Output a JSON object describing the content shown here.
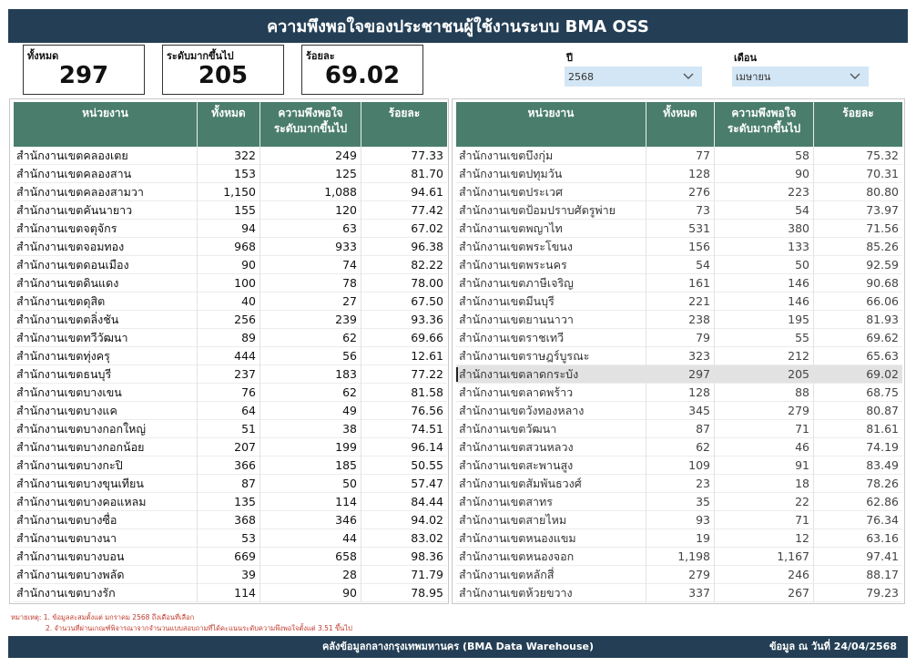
{
  "header": {
    "title": "ความพึงพอใจของประชาชนผู้ใช้งานระบบ BMA OSS"
  },
  "kpis": [
    {
      "label": "ทั้งหมด",
      "value": "297"
    },
    {
      "label": "ระดับมากขึ้นไป",
      "value": "205"
    },
    {
      "label": "ร้อยละ",
      "value": "69.02"
    }
  ],
  "filters": {
    "year": {
      "label": "ปี",
      "value": "2568"
    },
    "month": {
      "label": "เดือน",
      "value": "เมษายน"
    }
  },
  "icons": {
    "dropdown": "chevron-down-icon"
  },
  "colors": {
    "header": "#243f55",
    "table_header": "#4a7d6c",
    "filter_bg": "#d3e6f5",
    "note": "#c0392b"
  },
  "table": {
    "columns": [
      "หน่วยงาน",
      "ทั้งหมด",
      "ความพึงพอใจ ระดับมากขึ้นไป",
      "ร้อยละ"
    ],
    "col3_line1": "ความพึงพอใจ",
    "col3_line2": "ระดับมากขึ้นไป",
    "left_rows": [
      [
        "สำนักงานเขตคลองเตย",
        "322",
        "249",
        "77.33"
      ],
      [
        "สำนักงานเขตคลองสาน",
        "153",
        "125",
        "81.70"
      ],
      [
        "สำนักงานเขตคลองสามวา",
        "1,150",
        "1,088",
        "94.61"
      ],
      [
        "สำนักงานเขตคันนายาว",
        "155",
        "120",
        "77.42"
      ],
      [
        "สำนักงานเขตจตุจักร",
        "94",
        "63",
        "67.02"
      ],
      [
        "สำนักงานเขตจอมทอง",
        "968",
        "933",
        "96.38"
      ],
      [
        "สำนักงานเขตดอนเมือง",
        "90",
        "74",
        "82.22"
      ],
      [
        "สำนักงานเขตดินแดง",
        "100",
        "78",
        "78.00"
      ],
      [
        "สำนักงานเขตดุสิต",
        "40",
        "27",
        "67.50"
      ],
      [
        "สำนักงานเขตตลิ่งชัน",
        "256",
        "239",
        "93.36"
      ],
      [
        "สำนักงานเขตทวีวัฒนา",
        "89",
        "62",
        "69.66"
      ],
      [
        "สำนักงานเขตทุ่งครุ",
        "444",
        "56",
        "12.61"
      ],
      [
        "สำนักงานเขตธนบุรี",
        "237",
        "183",
        "77.22"
      ],
      [
        "สำนักงานเขตบางเขน",
        "76",
        "62",
        "81.58"
      ],
      [
        "สำนักงานเขตบางแค",
        "64",
        "49",
        "76.56"
      ],
      [
        "สำนักงานเขตบางกอกใหญ่",
        "51",
        "38",
        "74.51"
      ],
      [
        "สำนักงานเขตบางกอกน้อย",
        "207",
        "199",
        "96.14"
      ],
      [
        "สำนักงานเขตบางกะปิ",
        "366",
        "185",
        "50.55"
      ],
      [
        "สำนักงานเขตบางขุนเทียน",
        "87",
        "50",
        "57.47"
      ],
      [
        "สำนักงานเขตบางคอแหลม",
        "135",
        "114",
        "84.44"
      ],
      [
        "สำนักงานเขตบางซื่อ",
        "368",
        "346",
        "94.02"
      ],
      [
        "สำนักงานเขตบางนา",
        "53",
        "44",
        "83.02"
      ],
      [
        "สำนักงานเขตบางบอน",
        "669",
        "658",
        "98.36"
      ],
      [
        "สำนักงานเขตบางพลัด",
        "39",
        "28",
        "71.79"
      ],
      [
        "สำนักงานเขตบางรัก",
        "114",
        "90",
        "78.95"
      ]
    ],
    "right_rows": [
      [
        "สำนักงานเขตบึงกุ่ม",
        "77",
        "58",
        "75.32"
      ],
      [
        "สำนักงานเขตปทุมวัน",
        "128",
        "90",
        "70.31"
      ],
      [
        "สำนักงานเขตประเวศ",
        "276",
        "223",
        "80.80"
      ],
      [
        "สำนักงานเขตป้อมปราบศัตรูพ่าย",
        "73",
        "54",
        "73.97"
      ],
      [
        "สำนักงานเขตพญาไท",
        "531",
        "380",
        "71.56"
      ],
      [
        "สำนักงานเขตพระโขนง",
        "156",
        "133",
        "85.26"
      ],
      [
        "สำนักงานเขตพระนคร",
        "54",
        "50",
        "92.59"
      ],
      [
        "สำนักงานเขตภาษีเจริญ",
        "161",
        "146",
        "90.68"
      ],
      [
        "สำนักงานเขตมีนบุรี",
        "221",
        "146",
        "66.06"
      ],
      [
        "สำนักงานเขตยานนาวา",
        "238",
        "195",
        "81.93"
      ],
      [
        "สำนักงานเขตราชเทวี",
        "79",
        "55",
        "69.62"
      ],
      [
        "สำนักงานเขตราษฎร์บูรณะ",
        "323",
        "212",
        "65.63"
      ],
      [
        "สำนักงานเขตลาดกระบัง",
        "297",
        "205",
        "69.02"
      ],
      [
        "สำนักงานเขตลาดพร้าว",
        "128",
        "88",
        "68.75"
      ],
      [
        "สำนักงานเขตวังทองหลาง",
        "345",
        "279",
        "80.87"
      ],
      [
        "สำนักงานเขตวัฒนา",
        "87",
        "71",
        "81.61"
      ],
      [
        "สำนักงานเขตสวนหลวง",
        "62",
        "46",
        "74.19"
      ],
      [
        "สำนักงานเขตสะพานสูง",
        "109",
        "91",
        "83.49"
      ],
      [
        "สำนักงานเขตสัมพันธวงศ์",
        "23",
        "18",
        "78.26"
      ],
      [
        "สำนักงานเขตสาทร",
        "35",
        "22",
        "62.86"
      ],
      [
        "สำนักงานเขตสายไหม",
        "93",
        "71",
        "76.34"
      ],
      [
        "สำนักงานเขตหนองแขม",
        "19",
        "12",
        "63.16"
      ],
      [
        "สำนักงานเขตหนองจอก",
        "1,198",
        "1,167",
        "97.41"
      ],
      [
        "สำนักงานเขตหลักสี่",
        "279",
        "246",
        "88.17"
      ],
      [
        "สำนักงานเขตห้วยขวาง",
        "337",
        "267",
        "79.23"
      ]
    ],
    "highlight_right_index": 12
  },
  "notes": {
    "line1": "หมายเหตุ: 1. ข้อมูลสะสมตั้งแต่ มกราคม 2568 ถึงเดือนที่เลือก",
    "line2": "2. จำนวนที่ผ่านเกณฑ์พิจารณาจากจำนวนแบบสอบถามที่ได้คะแนนระดับความพึงพอใจตั้งแต่ 3.51 ขึ้นไป"
  },
  "footer": {
    "center": "คลังข้อมูลกลางกรุงเทพมหานคร (BMA Data Warehouse)",
    "right": "ข้อมูล ณ วันที่  24/04/2568"
  }
}
